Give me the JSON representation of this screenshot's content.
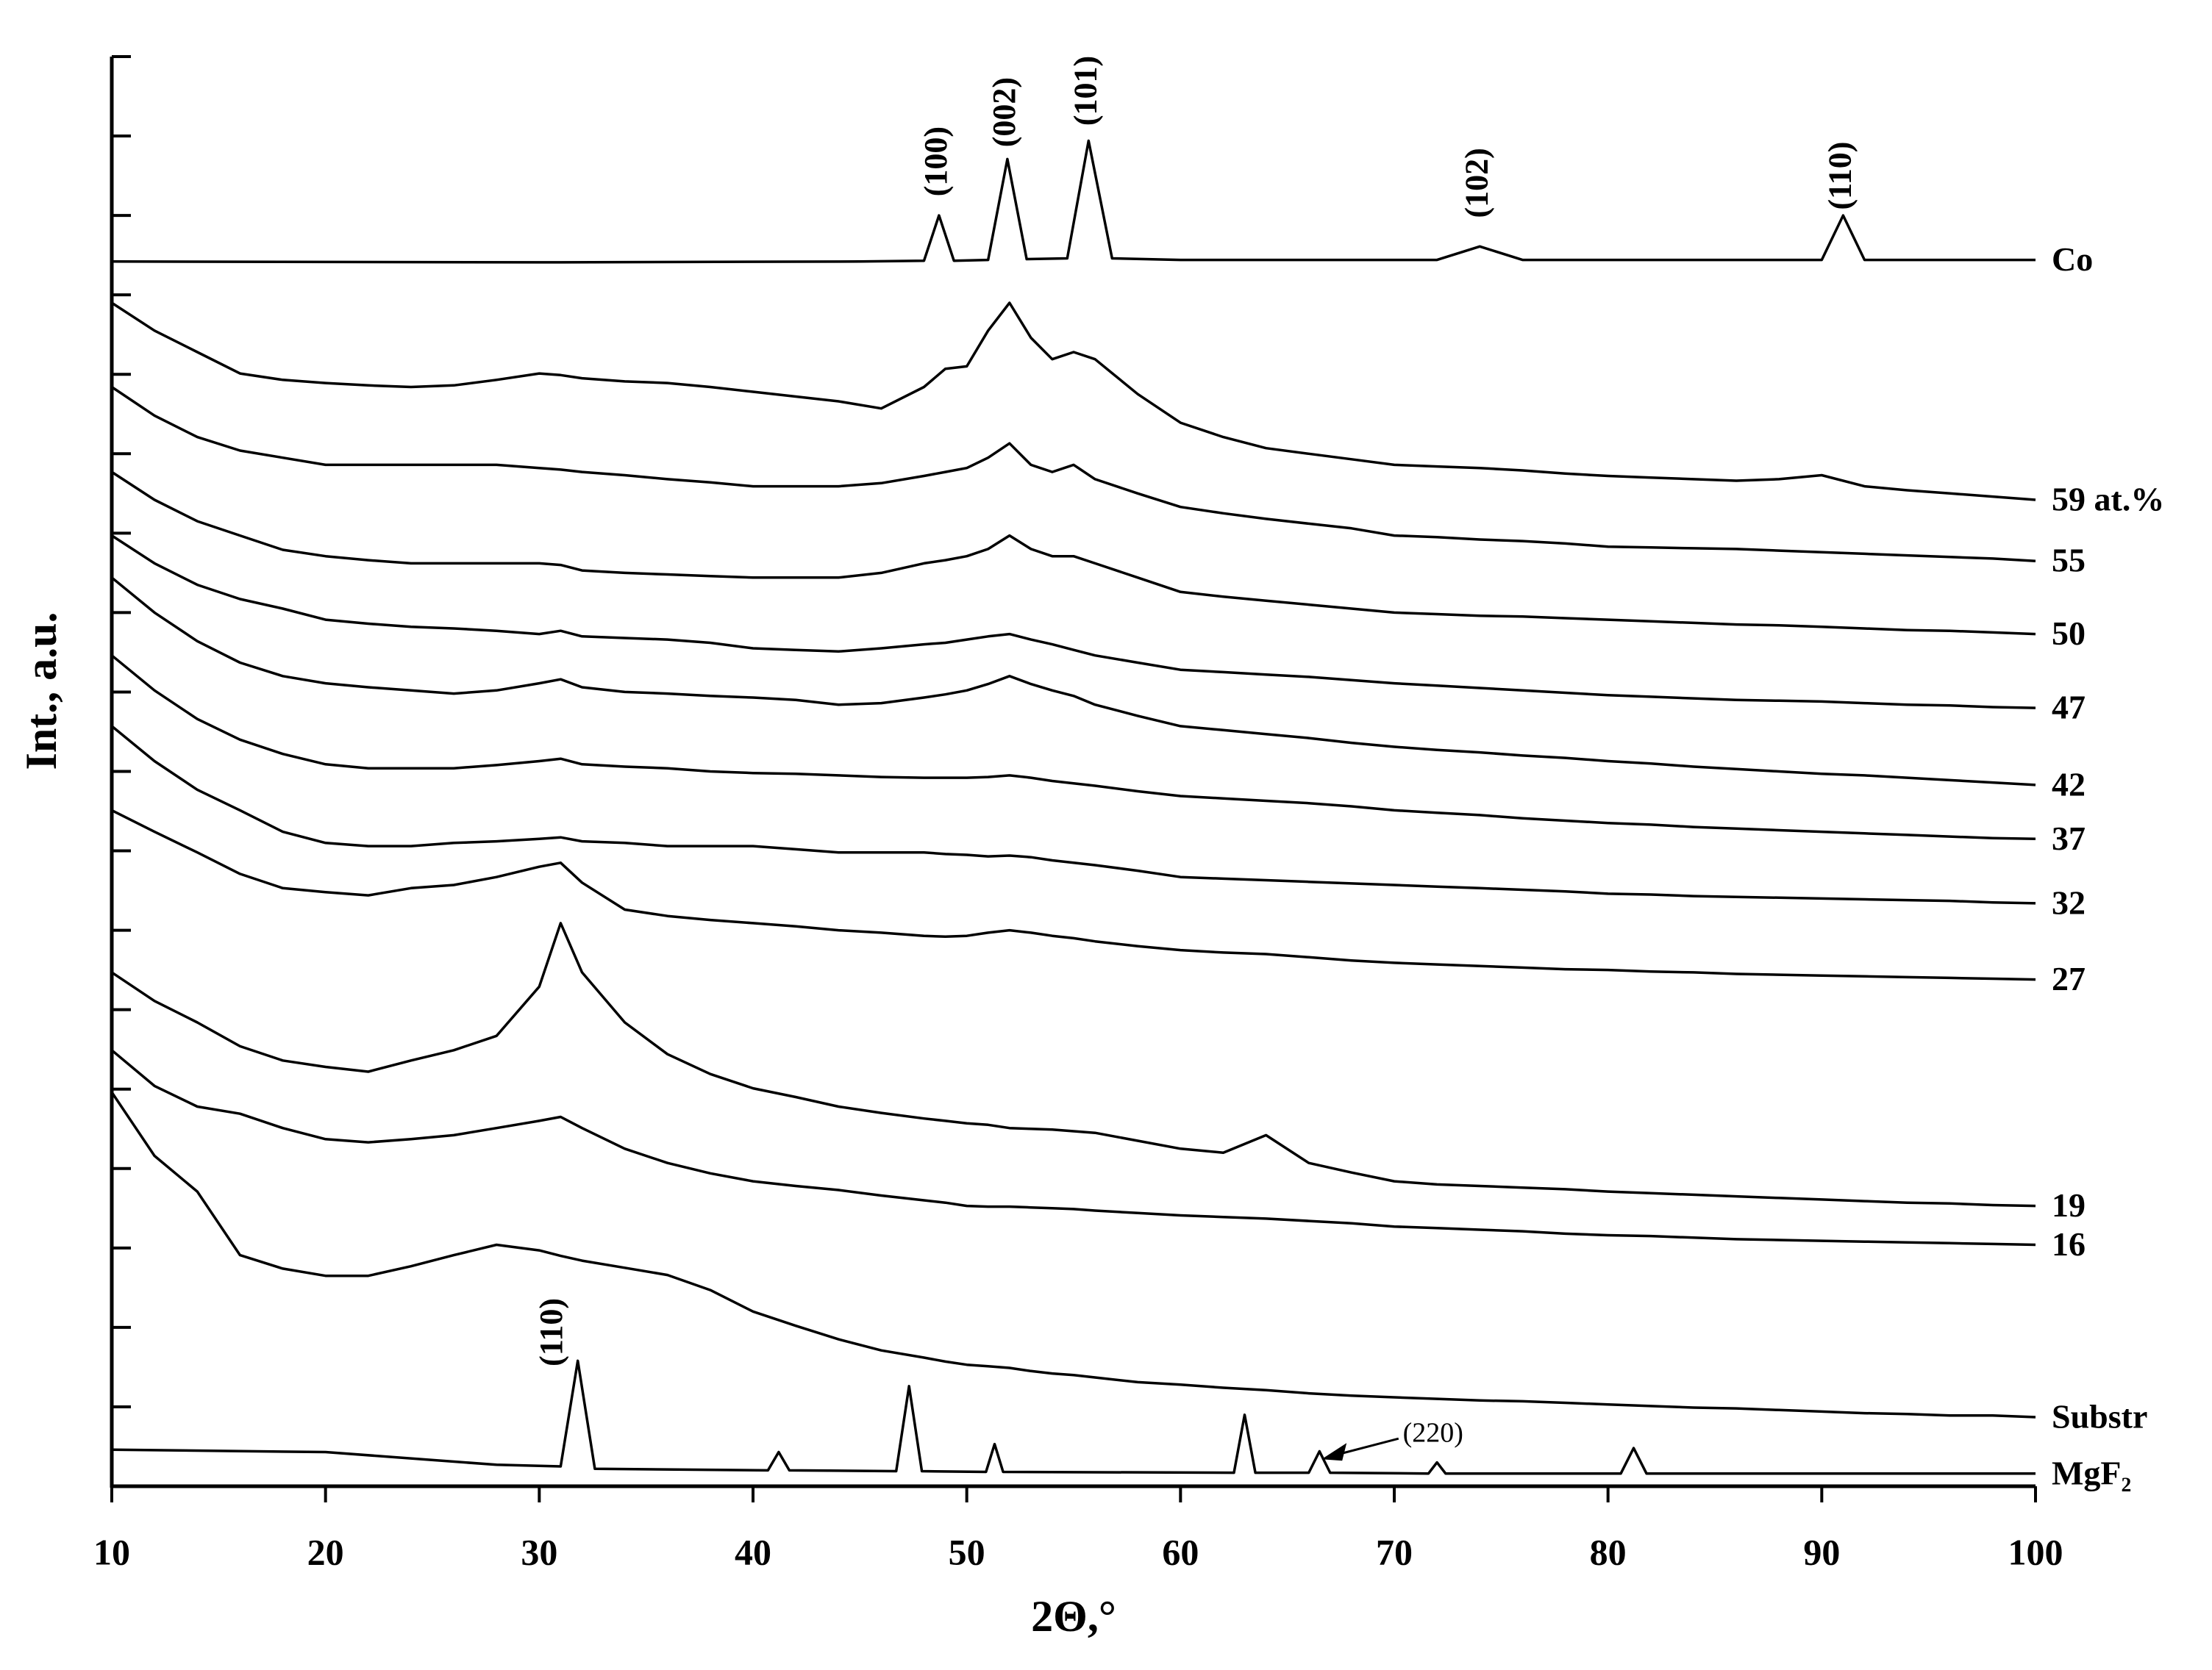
{
  "chart_data": {
    "type": "line",
    "xlabel": "2Θ,°",
    "ylabel": "Int., a.u.",
    "xlim": [
      10,
      100
    ],
    "xticks": [
      10,
      20,
      30,
      40,
      50,
      60,
      70,
      80,
      90,
      100
    ],
    "ylim": [
      0,
      18
    ],
    "yticks": [
      0,
      1,
      2,
      3,
      4,
      5,
      6,
      7,
      8,
      9,
      10,
      11,
      12,
      13,
      14,
      15,
      16,
      17,
      18
    ],
    "x": [
      10,
      12,
      14,
      16,
      18,
      20,
      22,
      24,
      26,
      28,
      30,
      31,
      32,
      34,
      36,
      38,
      40,
      42,
      44,
      46,
      48,
      49,
      50,
      51,
      52,
      53,
      54,
      55,
      56,
      58,
      60,
      62,
      64,
      66,
      68,
      70,
      72,
      74,
      76,
      78,
      80,
      82,
      84,
      86,
      88,
      90,
      92,
      94,
      96,
      98,
      100
    ],
    "series": [
      {
        "name": "Co",
        "color": "#000000",
        "x": [
          10,
          30,
          45,
          48,
          48.7,
          49.4,
          51,
          51.9,
          52.8,
          54.7,
          55.7,
          56.8,
          60,
          72,
          74,
          76,
          90,
          91,
          92,
          100
        ],
        "values": [
          15.42,
          15.41,
          15.42,
          15.43,
          16.0,
          15.43,
          15.44,
          16.71,
          15.45,
          15.46,
          16.94,
          15.46,
          15.44,
          15.44,
          15.61,
          15.44,
          15.44,
          16.0,
          15.44,
          15.44
        ]
      },
      {
        "name": "59 at.%",
        "color": "#000000",
        "values": [
          14.9,
          14.55,
          14.28,
          14.01,
          13.93,
          13.89,
          13.86,
          13.84,
          13.86,
          13.93,
          14.01,
          13.99,
          13.95,
          13.91,
          13.89,
          13.84,
          13.78,
          13.72,
          13.66,
          13.57,
          13.84,
          14.07,
          14.1,
          14.55,
          14.9,
          14.46,
          14.19,
          14.28,
          14.19,
          13.75,
          13.39,
          13.21,
          13.07,
          13.0,
          12.93,
          12.86,
          12.84,
          12.82,
          12.79,
          12.75,
          12.72,
          12.7,
          12.68,
          12.66,
          12.68,
          12.73,
          12.59,
          12.54,
          12.5,
          12.46,
          12.42
        ]
      },
      {
        "name": "55",
        "color": "#000000",
        "values": [
          13.84,
          13.48,
          13.21,
          13.04,
          12.95,
          12.86,
          12.86,
          12.86,
          12.86,
          12.86,
          12.82,
          12.8,
          12.77,
          12.73,
          12.68,
          12.64,
          12.59,
          12.59,
          12.59,
          12.63,
          12.72,
          12.77,
          12.82,
          12.95,
          13.13,
          12.86,
          12.77,
          12.86,
          12.68,
          12.5,
          12.33,
          12.25,
          12.18,
          12.12,
          12.06,
          11.97,
          11.95,
          11.92,
          11.9,
          11.87,
          11.83,
          11.82,
          11.81,
          11.8,
          11.78,
          11.76,
          11.74,
          11.72,
          11.7,
          11.68,
          11.65
        ]
      },
      {
        "name": "50",
        "color": "#000000",
        "values": [
          12.77,
          12.42,
          12.15,
          11.97,
          11.79,
          11.71,
          11.66,
          11.62,
          11.62,
          11.62,
          11.62,
          11.6,
          11.53,
          11.5,
          11.48,
          11.46,
          11.44,
          11.44,
          11.44,
          11.5,
          11.62,
          11.66,
          11.71,
          11.8,
          11.97,
          11.8,
          11.71,
          11.71,
          11.62,
          11.44,
          11.26,
          11.2,
          11.15,
          11.1,
          11.05,
          11.0,
          10.98,
          10.96,
          10.95,
          10.93,
          10.91,
          10.89,
          10.87,
          10.85,
          10.84,
          10.82,
          10.8,
          10.78,
          10.77,
          10.75,
          10.73
        ]
      },
      {
        "name": "47",
        "color": "#000000",
        "values": [
          11.97,
          11.62,
          11.35,
          11.17,
          11.05,
          10.91,
          10.86,
          10.82,
          10.8,
          10.77,
          10.73,
          10.77,
          10.7,
          10.68,
          10.66,
          10.62,
          10.55,
          10.53,
          10.51,
          10.55,
          10.6,
          10.62,
          10.66,
          10.7,
          10.73,
          10.66,
          10.6,
          10.53,
          10.46,
          10.37,
          10.28,
          10.25,
          10.22,
          10.19,
          10.15,
          10.11,
          10.08,
          10.05,
          10.02,
          9.99,
          9.96,
          9.94,
          9.92,
          9.9,
          9.89,
          9.88,
          9.86,
          9.84,
          9.83,
          9.81,
          9.8
        ]
      },
      {
        "name": "42",
        "color": "#000000",
        "values": [
          11.44,
          11.0,
          10.64,
          10.37,
          10.2,
          10.11,
          10.06,
          10.02,
          9.98,
          10.02,
          10.11,
          10.16,
          10.06,
          10.0,
          9.98,
          9.95,
          9.93,
          9.9,
          9.84,
          9.86,
          9.93,
          9.97,
          10.02,
          10.1,
          10.2,
          10.1,
          10.02,
          9.95,
          9.84,
          9.7,
          9.57,
          9.52,
          9.47,
          9.42,
          9.36,
          9.31,
          9.27,
          9.24,
          9.2,
          9.17,
          9.13,
          9.1,
          9.06,
          9.03,
          9.0,
          8.97,
          8.95,
          8.92,
          8.89,
          8.86,
          8.83
        ]
      },
      {
        "name": "37",
        "color": "#000000",
        "values": [
          10.46,
          10.02,
          9.66,
          9.4,
          9.22,
          9.09,
          9.04,
          9.04,
          9.04,
          9.08,
          9.13,
          9.16,
          9.09,
          9.06,
          9.04,
          9.0,
          8.98,
          8.97,
          8.95,
          8.93,
          8.92,
          8.92,
          8.92,
          8.93,
          8.95,
          8.92,
          8.88,
          8.85,
          8.82,
          8.75,
          8.69,
          8.66,
          8.63,
          8.6,
          8.56,
          8.51,
          8.48,
          8.45,
          8.41,
          8.38,
          8.35,
          8.33,
          8.3,
          8.28,
          8.26,
          8.24,
          8.22,
          8.2,
          8.18,
          8.16,
          8.15
        ]
      },
      {
        "name": "32",
        "color": "#000000",
        "values": [
          9.57,
          9.13,
          8.77,
          8.51,
          8.24,
          8.1,
          8.06,
          8.06,
          8.1,
          8.12,
          8.15,
          8.17,
          8.12,
          8.1,
          8.06,
          8.06,
          8.06,
          8.02,
          7.98,
          7.98,
          7.98,
          7.96,
          7.95,
          7.93,
          7.94,
          7.92,
          7.88,
          7.85,
          7.82,
          7.75,
          7.67,
          7.65,
          7.63,
          7.61,
          7.59,
          7.57,
          7.55,
          7.53,
          7.51,
          7.49,
          7.46,
          7.45,
          7.43,
          7.42,
          7.41,
          7.4,
          7.39,
          7.38,
          7.37,
          7.35,
          7.34
        ]
      },
      {
        "name": "27",
        "color": "#000000",
        "values": [
          8.51,
          8.24,
          7.98,
          7.71,
          7.53,
          7.48,
          7.44,
          7.53,
          7.57,
          7.67,
          7.8,
          7.85,
          7.6,
          7.26,
          7.18,
          7.13,
          7.09,
          7.05,
          7.0,
          6.97,
          6.93,
          6.92,
          6.93,
          6.97,
          7.0,
          6.97,
          6.93,
          6.9,
          6.86,
          6.8,
          6.75,
          6.72,
          6.7,
          6.66,
          6.62,
          6.59,
          6.57,
          6.55,
          6.53,
          6.51,
          6.5,
          6.48,
          6.47,
          6.45,
          6.44,
          6.43,
          6.42,
          6.41,
          6.4,
          6.39,
          6.38
        ]
      },
      {
        "name": "19",
        "color": "#000000",
        "values": [
          6.47,
          6.11,
          5.84,
          5.54,
          5.36,
          5.28,
          5.22,
          5.36,
          5.49,
          5.67,
          6.29,
          7.09,
          6.47,
          5.84,
          5.44,
          5.19,
          5.01,
          4.9,
          4.78,
          4.7,
          4.63,
          4.6,
          4.57,
          4.55,
          4.51,
          4.5,
          4.49,
          4.47,
          4.45,
          4.35,
          4.25,
          4.2,
          4.42,
          4.07,
          3.95,
          3.84,
          3.8,
          3.78,
          3.76,
          3.74,
          3.71,
          3.69,
          3.67,
          3.65,
          3.63,
          3.61,
          3.59,
          3.57,
          3.56,
          3.54,
          3.53
        ]
      },
      {
        "name": "16",
        "color": "#000000",
        "values": [
          5.49,
          5.04,
          4.78,
          4.69,
          4.51,
          4.37,
          4.33,
          4.37,
          4.42,
          4.51,
          4.6,
          4.65,
          4.51,
          4.25,
          4.07,
          3.94,
          3.84,
          3.78,
          3.73,
          3.66,
          3.6,
          3.57,
          3.53,
          3.52,
          3.52,
          3.51,
          3.5,
          3.49,
          3.47,
          3.44,
          3.41,
          3.39,
          3.37,
          3.34,
          3.31,
          3.27,
          3.25,
          3.23,
          3.21,
          3.18,
          3.16,
          3.15,
          3.13,
          3.11,
          3.1,
          3.09,
          3.08,
          3.07,
          3.06,
          3.05,
          3.04
        ]
      },
      {
        "name": "Substr",
        "color": "#000000",
        "values": [
          4.96,
          4.16,
          3.71,
          2.91,
          2.74,
          2.65,
          2.65,
          2.77,
          2.91,
          3.04,
          2.97,
          2.9,
          2.84,
          2.75,
          2.66,
          2.47,
          2.2,
          2.02,
          1.85,
          1.71,
          1.62,
          1.57,
          1.53,
          1.51,
          1.49,
          1.45,
          1.42,
          1.4,
          1.37,
          1.31,
          1.28,
          1.24,
          1.21,
          1.17,
          1.14,
          1.12,
          1.1,
          1.08,
          1.07,
          1.05,
          1.03,
          1.01,
          0.99,
          0.98,
          0.96,
          0.94,
          0.92,
          0.91,
          0.89,
          0.89,
          0.87
        ]
      },
      {
        "name": "MgF₂",
        "color": "#000000",
        "x": [
          10,
          20,
          28,
          31,
          31.8,
          32.6,
          40.7,
          41.2,
          41.7,
          46.7,
          47.3,
          47.9,
          50.9,
          51.3,
          51.7,
          62.5,
          63,
          63.5,
          66,
          66.5,
          67,
          71.6,
          72,
          72.4,
          80.6,
          81.2,
          81.8,
          100
        ],
        "values": [
          0.46,
          0.43,
          0.27,
          0.25,
          1.58,
          0.22,
          0.2,
          0.43,
          0.2,
          0.19,
          1.26,
          0.19,
          0.18,
          0.53,
          0.18,
          0.17,
          0.9,
          0.17,
          0.17,
          0.44,
          0.17,
          0.16,
          0.3,
          0.16,
          0.16,
          0.48,
          0.16,
          0.16
        ]
      }
    ],
    "annotations": [
      "(100)",
      "(002)",
      "(101)",
      "(102)",
      "(110)",
      "(110)",
      "(220)"
    ]
  }
}
